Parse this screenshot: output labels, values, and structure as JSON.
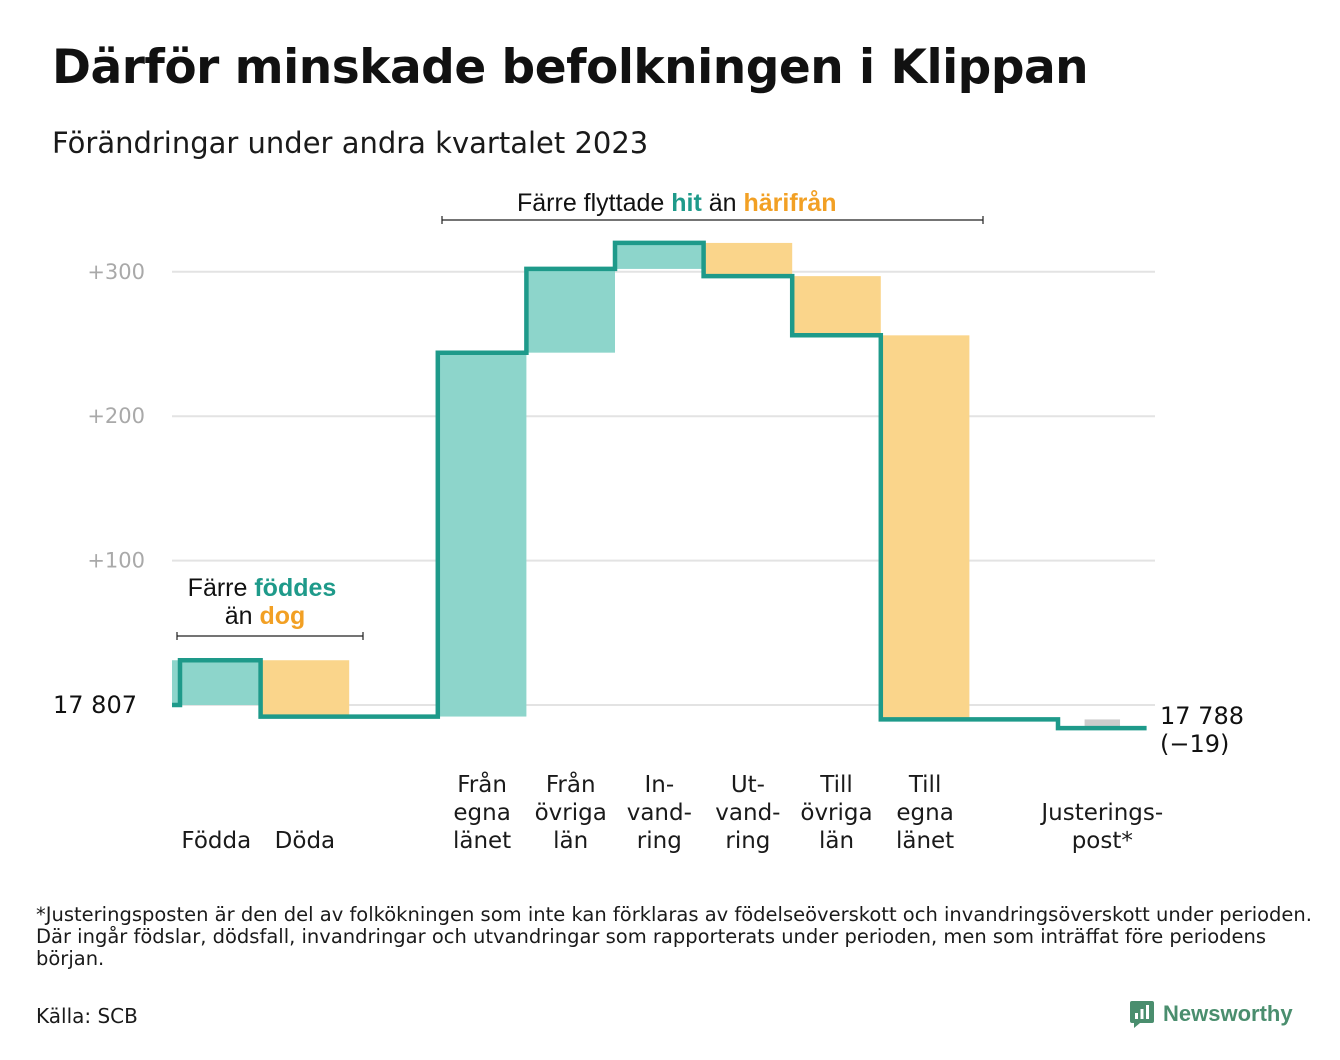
{
  "title": "Därför minskade befolkningen i Klippan",
  "subtitle": "Förändringar under andra kvartalet 2023",
  "footnote": "*Justeringsposten är den del av folkökningen som inte kan förklaras av födelseöverskott och invandringsöverskott under perioden. Där ingår födslar, dödsfall, invandringar och utvandringar som rapporterats under perioden, men som inträffat före periodens början.",
  "source": "Källa: SCB",
  "logo": {
    "text": "Newsworthy",
    "icon": "newsworthy-logo-icon"
  },
  "colors": {
    "increase": "#8dd5cb",
    "decrease": "#fad58b",
    "adjustment": "#cccccc",
    "line": "#1e9a8a",
    "grid": "#e3e3e3",
    "accent_teal": "#1e9a8a",
    "accent_orange": "#f2a024"
  },
  "annotations": {
    "births": {
      "line1": "Färre",
      "highlight1": "föddes",
      "line2": "än",
      "highlight2": "dog"
    },
    "migration": {
      "text": "Färre flyttade",
      "highlight1": "hit",
      "middle": "än",
      "highlight2": "härifrån"
    }
  },
  "chart_data": {
    "type": "waterfall",
    "start_label": "17  807",
    "start_value": 0,
    "yticks": [
      "+100",
      "+200",
      "+300"
    ],
    "ytick_values": [
      100,
      200,
      300
    ],
    "ylim": [
      -30,
      340
    ],
    "grid": true,
    "end_label_value": "17 788",
    "end_label_change": "(−19)",
    "categories": [
      {
        "label": [
          "Födda"
        ],
        "change": 31,
        "kind": "increase"
      },
      {
        "label": [
          "Döda"
        ],
        "change": -39,
        "kind": "decrease"
      },
      {
        "label": [],
        "change": 0,
        "kind": "gap"
      },
      {
        "label": [
          "Från",
          "egna",
          "länet"
        ],
        "change": 252,
        "kind": "increase"
      },
      {
        "label": [
          "Från",
          "övriga",
          "län"
        ],
        "change": 58,
        "kind": "increase"
      },
      {
        "label": [
          "In-",
          "vand-",
          "ring"
        ],
        "change": 18,
        "kind": "increase"
      },
      {
        "label": [
          "Ut-",
          "vand-",
          "ring"
        ],
        "change": -23,
        "kind": "decrease"
      },
      {
        "label": [
          "Till",
          "övriga",
          "län"
        ],
        "change": -41,
        "kind": "decrease"
      },
      {
        "label": [
          "Till",
          "egna",
          "länet"
        ],
        "change": -266,
        "kind": "decrease"
      },
      {
        "label": [],
        "change": 0,
        "kind": "gap"
      },
      {
        "label": [
          "Justerings-",
          "post*"
        ],
        "change": -6,
        "kind": "adjustment"
      }
    ]
  }
}
